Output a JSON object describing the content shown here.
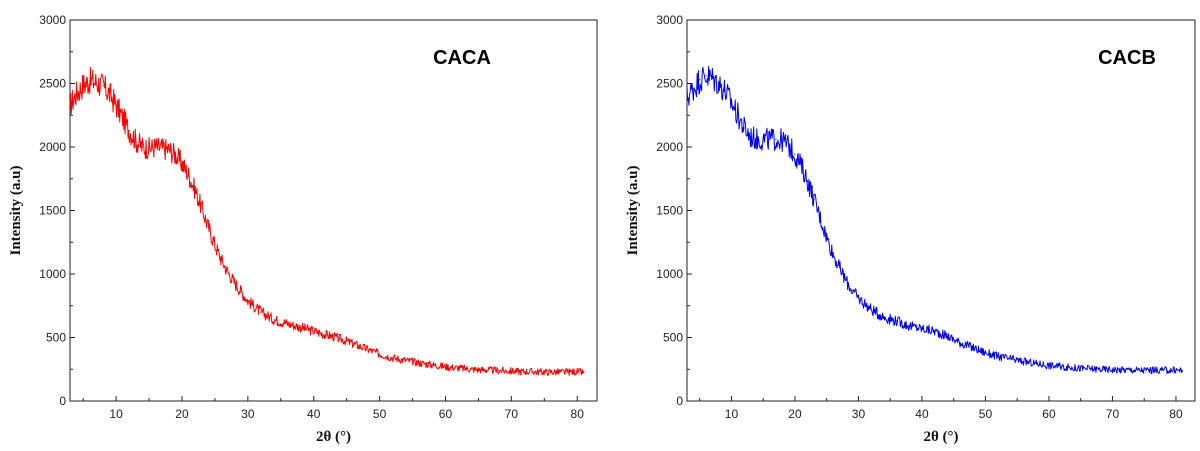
{
  "chart_data": [
    {
      "type": "line",
      "label": "CACA",
      "xlabel": "2θ (°)",
      "ylabel": "Intensity (a.u)",
      "xlim": [
        3,
        83
      ],
      "ylim": [
        0,
        3000
      ],
      "xticks": [
        10,
        20,
        30,
        40,
        50,
        60,
        70,
        80
      ],
      "yticks": [
        0,
        500,
        1000,
        1500,
        2000,
        2500,
        3000
      ],
      "color": "#ff0000",
      "grid": false,
      "series": [
        {
          "x": [
            3,
            4,
            5,
            6,
            7,
            8,
            9,
            10,
            11,
            12,
            13,
            14,
            15,
            16,
            17,
            18,
            19,
            20,
            21,
            22,
            23,
            24,
            25,
            26,
            27,
            28,
            29,
            30,
            32,
            34,
            36,
            38,
            40,
            42,
            44,
            46,
            48,
            50,
            52,
            54,
            56,
            58,
            60,
            62,
            64,
            66,
            68,
            70,
            72,
            74,
            76,
            78,
            80,
            81
          ],
          "values": [
            2330,
            2420,
            2490,
            2520,
            2510,
            2480,
            2420,
            2330,
            2230,
            2130,
            2050,
            2000,
            1990,
            2000,
            1990,
            1980,
            1940,
            1870,
            1780,
            1660,
            1520,
            1370,
            1230,
            1110,
            1010,
            930,
            860,
            790,
            700,
            640,
            610,
            580,
            550,
            520,
            490,
            450,
            410,
            370,
            340,
            320,
            300,
            285,
            270,
            260,
            250,
            245,
            240,
            235,
            232,
            230,
            228,
            228,
            230,
            225
          ]
        }
      ]
    },
    {
      "type": "line",
      "label": "CACB",
      "xlabel": "2θ (°)",
      "ylabel": "Intensity (a.u)",
      "xlim": [
        3,
        83
      ],
      "ylim": [
        0,
        3000
      ],
      "xticks": [
        10,
        20,
        30,
        40,
        50,
        60,
        70,
        80
      ],
      "yticks": [
        0,
        500,
        1000,
        1500,
        2000,
        2500,
        3000
      ],
      "color": "#0000ff",
      "grid": false,
      "series": [
        {
          "x": [
            3,
            4,
            5,
            6,
            7,
            8,
            9,
            10,
            11,
            12,
            13,
            14,
            15,
            16,
            17,
            18,
            19,
            20,
            21,
            22,
            23,
            24,
            25,
            26,
            27,
            28,
            29,
            30,
            32,
            34,
            36,
            38,
            40,
            42,
            44,
            46,
            48,
            50,
            52,
            54,
            56,
            58,
            60,
            62,
            64,
            66,
            68,
            70,
            72,
            74,
            76,
            78,
            80,
            81
          ],
          "values": [
            2390,
            2460,
            2530,
            2560,
            2540,
            2500,
            2440,
            2350,
            2250,
            2150,
            2080,
            2060,
            2060,
            2060,
            2060,
            2050,
            2010,
            1940,
            1850,
            1730,
            1590,
            1440,
            1290,
            1160,
            1050,
            950,
            870,
            810,
            720,
            660,
            630,
            590,
            570,
            550,
            510,
            460,
            420,
            380,
            350,
            330,
            310,
            295,
            280,
            270,
            260,
            255,
            250,
            247,
            245,
            243,
            242,
            242,
            243,
            240
          ]
        }
      ]
    }
  ]
}
